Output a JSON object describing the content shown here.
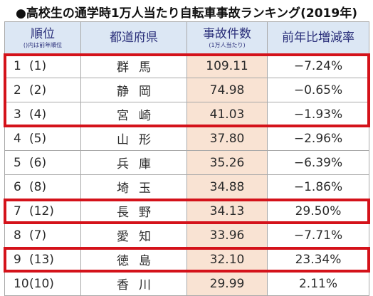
{
  "title": "●高校生の通学時1万人当たり自転車事故ランキング(2019年)",
  "header": {
    "rank": "順位",
    "rank_sub": "()内は前年順位",
    "prefecture": "都道府県",
    "accidents": "事故件数",
    "accidents_sub": "(1万人当たり)",
    "change": "前年比増減率"
  },
  "rows": [
    {
      "rank": "1",
      "prev": "(1)",
      "pref": "群馬",
      "value": "109.11",
      "change": "−7.24%",
      "highlight": true
    },
    {
      "rank": "2",
      "prev": "(2)",
      "pref": "静岡",
      "value": "74.98",
      "change": "−0.65%",
      "highlight": true
    },
    {
      "rank": "3",
      "prev": "(4)",
      "pref": "宮崎",
      "value": "41.03",
      "change": "−1.93%",
      "highlight": true
    },
    {
      "rank": "4",
      "prev": "(5)",
      "pref": "山形",
      "value": "37.80",
      "change": "−2.96%",
      "highlight": false
    },
    {
      "rank": "5",
      "prev": "(6)",
      "pref": "兵庫",
      "value": "35.26",
      "change": "−6.39%",
      "highlight": false
    },
    {
      "rank": "6",
      "prev": "(8)",
      "pref": "埼玉",
      "value": "34.88",
      "change": "−1.86%",
      "highlight": false
    },
    {
      "rank": "7",
      "prev": "(12)",
      "pref": "長野",
      "value": "34.13",
      "change": "29.50%",
      "highlight": true
    },
    {
      "rank": "8",
      "prev": "(7)",
      "pref": "愛知",
      "value": "33.96",
      "change": "−7.71%",
      "highlight": false
    },
    {
      "rank": "9",
      "prev": "(13)",
      "pref": "徳島",
      "value": "32.10",
      "change": "23.34%",
      "highlight": true
    },
    {
      "rank": "10",
      "prev": "(10)",
      "pref": "香川",
      "value": "29.99",
      "change": "2.11%",
      "highlight": false
    }
  ],
  "colors": {
    "header_bg": "#dce7f4",
    "header_text": "#2a2f7a",
    "value_bg": "#f9e3d3",
    "highlight_border": "#d4121a"
  }
}
